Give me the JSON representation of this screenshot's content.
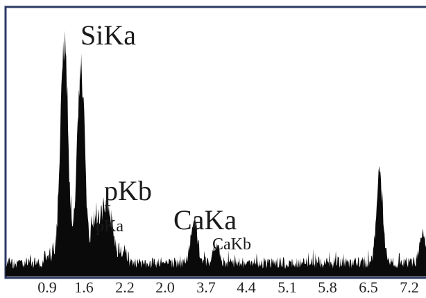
{
  "chart_data": {
    "type": "area",
    "title": "",
    "xlabel": "",
    "ylabel": "",
    "xlim": [
      0.5,
      7.3
    ],
    "ylim": [
      0,
      100
    ],
    "x_tick_labels": [
      "0.9",
      "1.6",
      "2.2",
      "2.0",
      "3.7",
      "4.4",
      "5.1",
      "5.8",
      "6.5",
      "7.2"
    ],
    "peaks": [
      {
        "label": "SiKa",
        "x": 1.45,
        "value": 92,
        "width": 0.06
      },
      {
        "label": "",
        "x": 1.72,
        "value": 82,
        "width": 0.06
      },
      {
        "label": "pKb",
        "x": 2.12,
        "value": 22,
        "width": 0.09
      },
      {
        "label": "pKa",
        "x": 1.95,
        "value": 13,
        "width": 0.05
      },
      {
        "label": "CaKa",
        "x": 3.55,
        "value": 18,
        "width": 0.05
      },
      {
        "label": "CaKb",
        "x": 3.9,
        "value": 8,
        "width": 0.05
      },
      {
        "label": "",
        "x": 6.55,
        "value": 37,
        "width": 0.05
      },
      {
        "label": "",
        "x": 7.25,
        "value": 12,
        "width": 0.05
      }
    ],
    "background_level": 5,
    "colors": {
      "fill": "#0a0a0a",
      "frame": "#2e3a66"
    }
  }
}
